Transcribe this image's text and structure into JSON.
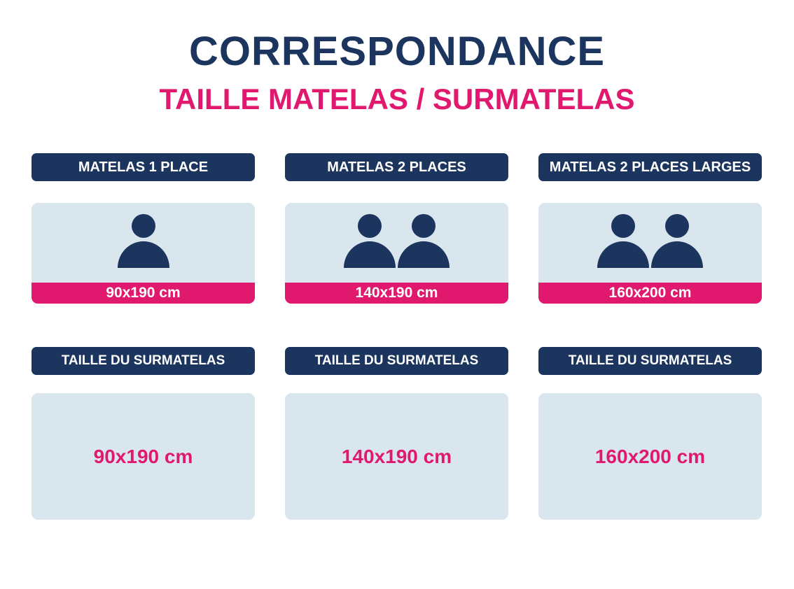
{
  "header": {
    "title": "CORRESPONDANCE",
    "subtitle": "TAILLE MATELAS / SURMATELAS"
  },
  "columns": [
    {
      "label": "MATELAS 1 PLACE",
      "size": "90x190 cm",
      "topper_label": "TAILLE DU SURMATELAS",
      "topper_size": "90x190 cm"
    },
    {
      "label": "MATELAS 2 PLACES",
      "size": "140x190 cm",
      "topper_label": "TAILLE DU SURMATELAS",
      "topper_size": "140x190 cm"
    },
    {
      "label": "MATELAS 2 PLACES LARGES",
      "size": "160x200 cm",
      "topper_label": "TAILLE DU SURMATELAS",
      "topper_size": "160x200 cm"
    }
  ]
}
